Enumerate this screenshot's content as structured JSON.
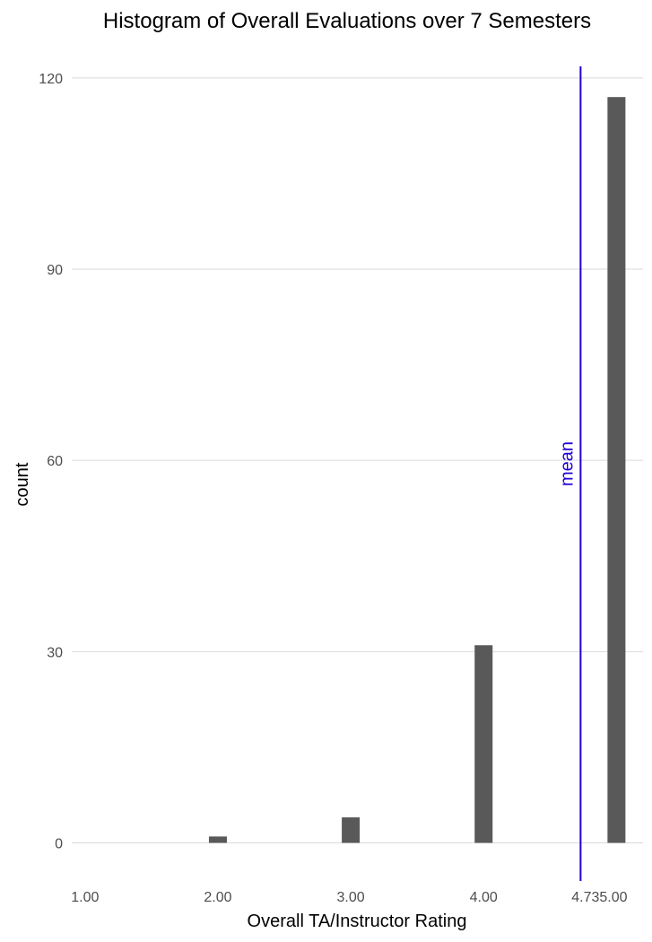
{
  "chart_data": {
    "type": "bar",
    "title": "Histogram of Overall Evaluations over 7 Semesters",
    "xlabel": "Overall TA/Instructor Rating",
    "ylabel": "count",
    "categories": [
      1.0,
      2.0,
      3.0,
      4.0,
      5.0
    ],
    "values": [
      0,
      1,
      4,
      31,
      117
    ],
    "xlim": [
      0.9,
      5.2
    ],
    "ylim": [
      -5.7,
      123.5
    ],
    "x_ticks": [
      {
        "value": 1.0,
        "label": "1.00"
      },
      {
        "value": 2.0,
        "label": "2.00"
      },
      {
        "value": 3.0,
        "label": "3.00"
      },
      {
        "value": 4.0,
        "label": "4.00"
      },
      {
        "value": 4.73,
        "label": "4.73"
      },
      {
        "value": 5.0,
        "label": "5.00"
      }
    ],
    "y_ticks": [
      0,
      30,
      60,
      90,
      120
    ],
    "grid": "horizontal",
    "bar_color": "#595959",
    "reference_line": {
      "value": 4.73,
      "label": "mean",
      "color": "#1f00d4"
    }
  }
}
